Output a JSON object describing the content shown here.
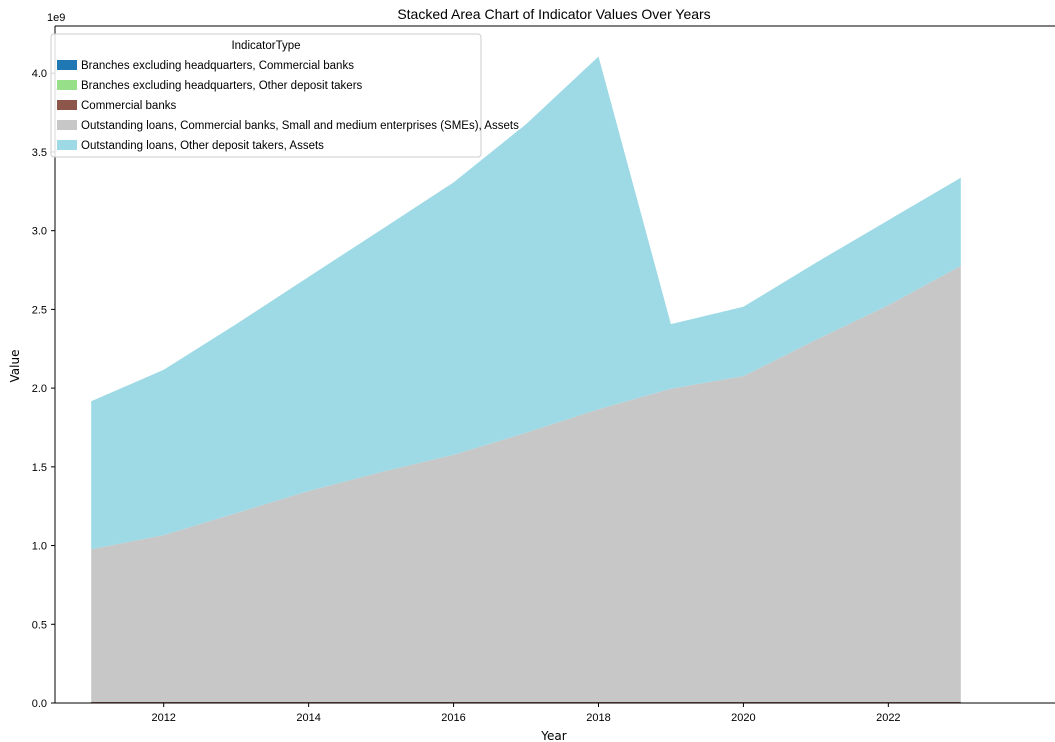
{
  "chart_data": {
    "type": "area",
    "stacked": true,
    "title": "Stacked Area Chart of Indicator Values Over Years",
    "xlabel": "Year",
    "ylabel": "Value",
    "y_offset_label": "1e9",
    "xlim": [
      2010.5,
      2024.3
    ],
    "ylim": [
      0,
      4.3
    ],
    "x_ticks": [
      2012,
      2014,
      2016,
      2018,
      2020,
      2022
    ],
    "y_ticks": [
      0.0,
      0.5,
      1.0,
      1.5,
      2.0,
      2.5,
      3.0,
      3.5,
      4.0
    ],
    "y_tick_labels": [
      "0.0",
      "0.5",
      "1.0",
      "1.5",
      "2.0",
      "2.5",
      "3.0",
      "3.5",
      "4.0"
    ],
    "grid": false,
    "legend_title": "IndicatorType",
    "legend_position": "top-left",
    "x": [
      2011,
      2012,
      2013,
      2014,
      2015,
      2016,
      2017,
      2018,
      2019,
      2020,
      2021,
      2022,
      2023
    ],
    "series": [
      {
        "name": "Branches excluding headquarters, Commercial banks",
        "color": "#1f77b4",
        "values": [
          0.0003,
          0.0003,
          0.0003,
          0.0003,
          0.0003,
          0.0003,
          0.0003,
          0.0003,
          0.0003,
          0.0003,
          0.0003,
          0.0003,
          0.0003
        ]
      },
      {
        "name": "Branches excluding headquarters, Other deposit takers",
        "color": "#98df8a",
        "values": [
          0.0001,
          0.0001,
          0.0001,
          0.0001,
          0.0001,
          0.0001,
          0.0001,
          0.0001,
          0.0001,
          0.0001,
          0.0001,
          0.0001,
          0.0001
        ]
      },
      {
        "name": "Commercial banks",
        "color": "#8c564b",
        "values": [
          0.006,
          0.006,
          0.006,
          0.006,
          0.006,
          0.006,
          0.006,
          0.006,
          0.006,
          0.006,
          0.006,
          0.006,
          0.006
        ]
      },
      {
        "name": "Outstanding loans, Commercial banks, Small and medium enterprises (SMEs), Assets",
        "color": "#c7c7c7",
        "values": [
          0.97,
          1.06,
          1.2,
          1.34,
          1.46,
          1.57,
          1.71,
          1.86,
          1.99,
          2.07,
          2.3,
          2.52,
          2.77
        ]
      },
      {
        "name": "Outstanding loans, Other deposit takers, Assets",
        "color": "#9edae5",
        "values": [
          0.94,
          1.05,
          1.2,
          1.36,
          1.54,
          1.73,
          1.96,
          2.24,
          0.41,
          0.44,
          0.49,
          0.54,
          0.56
        ]
      }
    ]
  }
}
